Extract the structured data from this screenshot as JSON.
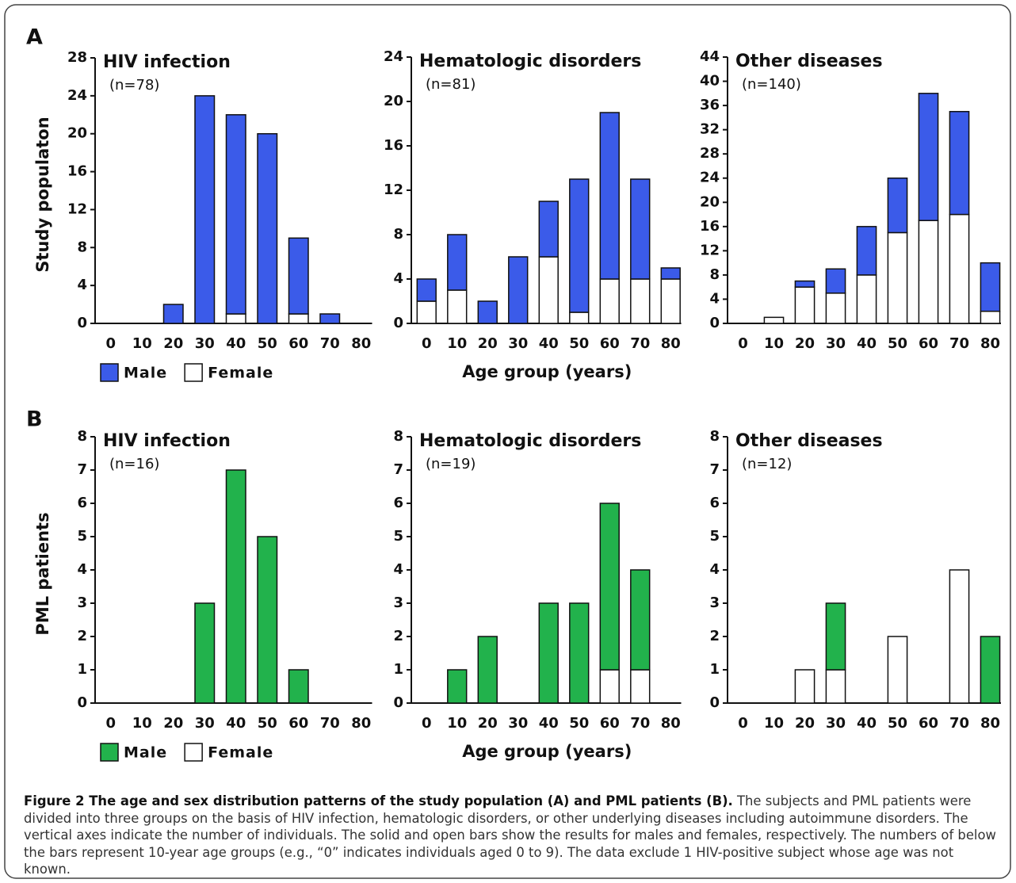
{
  "panels": [
    "A",
    "B"
  ],
  "caption": {
    "title": "Figure 2 The age and sex distribution patterns of the study population (A) and PML patients (B).",
    "text": "The subjects and PML patients were divided into three groups on the basis of HIV infection, hematologic disorders, or other underlying diseases including autoimmune disorders. The vertical axes indicate the number of individuals. The solid and open bars show the results for males and females, respectively. The numbers of below the bars represent 10-year age groups (e.g., “0” indicates individuals aged 0 to 9). The data exclude 1 HIV-positive subject whose age was not known."
  },
  "chart_data": [
    {
      "type": "bar",
      "stacked": true,
      "title": "HIV infection",
      "subtitle": "(n=78)",
      "ylabel": "Study populaton",
      "categories": [
        "0",
        "10",
        "20",
        "30",
        "40",
        "50",
        "60",
        "70",
        "80"
      ],
      "series": [
        {
          "name": "Male",
          "color": "#3b5be9",
          "values": [
            0,
            0,
            2,
            24,
            21,
            20,
            8,
            1,
            0
          ]
        },
        {
          "name": "Female",
          "color": "#ffffff",
          "values": [
            0,
            0,
            0,
            0,
            1,
            0,
            1,
            0,
            0
          ]
        }
      ],
      "ylim": [
        0,
        28
      ],
      "yticks": [
        0,
        4,
        8,
        12,
        16,
        20,
        24,
        28
      ]
    },
    {
      "type": "bar",
      "stacked": true,
      "title": "Hematologic disorders",
      "subtitle": "(n=81)",
      "xlabel": "Age group (years)",
      "categories": [
        "0",
        "10",
        "20",
        "30",
        "40",
        "50",
        "60",
        "70",
        "80"
      ],
      "series": [
        {
          "color": "#3b5be9",
          "values": [
            2,
            5,
            2,
            6,
            5,
            12,
            15,
            9,
            1
          ]
        },
        {
          "color": "#ffffff",
          "values": [
            2,
            3,
            0,
            0,
            6,
            1,
            4,
            4,
            4
          ]
        }
      ],
      "ylim": [
        0,
        24
      ],
      "yticks": [
        0,
        4,
        8,
        12,
        16,
        20,
        24
      ]
    },
    {
      "type": "bar",
      "stacked": true,
      "title": "Other diseases",
      "subtitle": "(n=140)",
      "categories": [
        "0",
        "10",
        "20",
        "30",
        "40",
        "50",
        "60",
        "70",
        "80"
      ],
      "series": [
        {
          "color": "#3b5be9",
          "values": [
            0,
            0,
            1,
            4,
            8,
            9,
            21,
            17,
            8
          ]
        },
        {
          "color": "#ffffff",
          "values": [
            0,
            1,
            6,
            5,
            8,
            15,
            17,
            18,
            2
          ]
        }
      ],
      "ylim": [
        0,
        44
      ],
      "yticks": [
        0,
        4,
        8,
        12,
        16,
        20,
        24,
        28,
        32,
        36,
        40,
        44
      ]
    },
    {
      "type": "bar",
      "stacked": true,
      "title": "HIV infection",
      "subtitle": "(n=16)",
      "ylabel": "PML patients",
      "categories": [
        "0",
        "10",
        "20",
        "30",
        "40",
        "50",
        "60",
        "70",
        "80"
      ],
      "series": [
        {
          "name": "Male",
          "color": "#22b24c",
          "values": [
            0,
            0,
            0,
            3,
            7,
            5,
            1,
            0,
            0
          ]
        },
        {
          "name": "Female",
          "color": "#ffffff",
          "values": [
            0,
            0,
            0,
            0,
            0,
            0,
            0,
            0,
            0
          ]
        }
      ],
      "ylim": [
        0,
        8
      ],
      "yticks": [
        0,
        1,
        2,
        3,
        4,
        5,
        6,
        7,
        8
      ]
    },
    {
      "type": "bar",
      "stacked": true,
      "title": "Hematologic disorders",
      "subtitle": "(n=19)",
      "xlabel": "Age group (years)",
      "categories": [
        "0",
        "10",
        "20",
        "30",
        "40",
        "50",
        "60",
        "70",
        "80"
      ],
      "series": [
        {
          "color": "#22b24c",
          "values": [
            0,
            1,
            2,
            0,
            3,
            3,
            5,
            3,
            0
          ]
        },
        {
          "color": "#ffffff",
          "values": [
            0,
            0,
            0,
            0,
            0,
            0,
            1,
            1,
            0
          ]
        }
      ],
      "ylim": [
        0,
        8
      ],
      "yticks": [
        0,
        1,
        2,
        3,
        4,
        5,
        6,
        7,
        8
      ]
    },
    {
      "type": "bar",
      "stacked": true,
      "title": "Other diseases",
      "subtitle": "(n=12)",
      "categories": [
        "0",
        "10",
        "20",
        "30",
        "40",
        "50",
        "60",
        "70",
        "80"
      ],
      "series": [
        {
          "color": "#22b24c",
          "values": [
            0,
            0,
            0,
            2,
            0,
            0,
            0,
            0,
            2
          ]
        },
        {
          "color": "#ffffff",
          "values": [
            0,
            0,
            1,
            1,
            0,
            2,
            0,
            4,
            0
          ]
        }
      ],
      "ylim": [
        0,
        8
      ],
      "yticks": [
        0,
        1,
        2,
        3,
        4,
        5,
        6,
        7,
        8
      ]
    }
  ]
}
